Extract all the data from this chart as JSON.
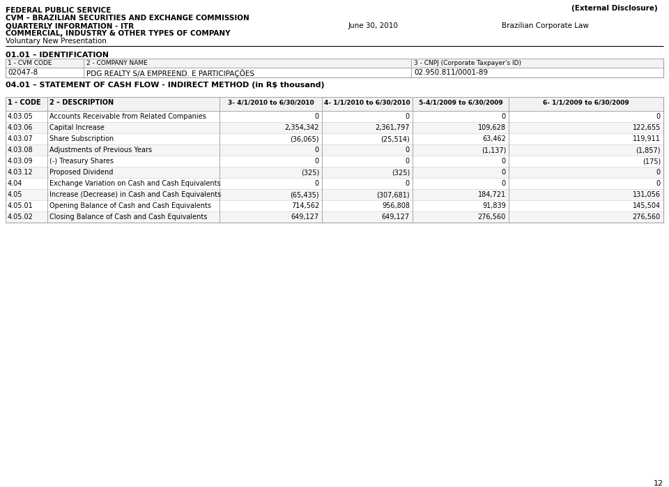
{
  "external_disclosure": "(External Disclosure)",
  "header_lines": [
    "FEDERAL PUBLIC SERVICE",
    "CVM – BRAZILIAN SECURITIES AND EXCHANGE COMMISSION",
    "QUARTERLY INFORMATION - ITR",
    "COMMERCIAL, INDUSTRY & OTHER TYPES OF COMPANY",
    "Voluntary New Presentation"
  ],
  "date_label": "June 30, 2010",
  "law_label": "Brazilian Corporate Law",
  "section_id": "01.01 – IDENTIFICATION",
  "id_table_headers": [
    "1 - CVM CODE",
    "2 - COMPANY NAME",
    "3 - CNPJ (Corporate Taxpayer's ID)"
  ],
  "id_table_values": [
    "02047-8",
    "PDG REALTY S/A EMPREEND. E PARTICIPAÇÕES",
    "02.950.811/0001-89"
  ],
  "cash_flow_title": "04.01 – STATEMENT OF CASH FLOW - INDIRECT METHOD (in R$ thousand)",
  "table_col_headers": [
    "1 - CODE",
    "2 – DESCRIPTION",
    "3- 4/1/2010 to 6/30/2010",
    "4- 1/1/2010 to 6/30/2010",
    "5-4/1/2009 to 6/30/2009",
    "6- 1/1/2009 to 6/30/2009"
  ],
  "rows": [
    [
      "4.03.05",
      "Accounts Receivable from Related Companies",
      "0",
      "0",
      "0",
      "0"
    ],
    [
      "4.03.06",
      "Capital Increase",
      "2,354,342",
      "2,361,797",
      "109,628",
      "122,655"
    ],
    [
      "4.03.07",
      "Share Subscription",
      "(36,065)",
      "(25,514)",
      "63,462",
      "119,911"
    ],
    [
      "4.03.08",
      "Adjustments of Previous Years",
      "0",
      "0",
      "(1,137)",
      "(1,857)"
    ],
    [
      "4.03.09",
      "(-) Treasury Shares",
      "0",
      "0",
      "0",
      "(175)"
    ],
    [
      "4.03.12",
      "Proposed Dividend",
      "(325)",
      "(325)",
      "0",
      "0"
    ],
    [
      "4.04",
      "Exchange Variation on Cash and Cash Equivalents",
      "0",
      "0",
      "0",
      "0"
    ],
    [
      "4.05",
      "Increase (Decrease) in Cash and Cash Equivalents",
      "(65,435)",
      "(307,681)",
      "184,721",
      "131,056"
    ],
    [
      "4.05.01",
      "Opening Balance of Cash and Cash Equivalents",
      "714,562",
      "956,808",
      "91,839",
      "145,504"
    ],
    [
      "4.05.02",
      "Closing Balance of Cash and Cash Equivalents",
      "649,127",
      "649,127",
      "276,560",
      "276,560"
    ]
  ],
  "page_number": "12",
  "bg_color": "#ffffff",
  "grid_color": "#aaaaaa",
  "header_bg": "#f2f2f2"
}
